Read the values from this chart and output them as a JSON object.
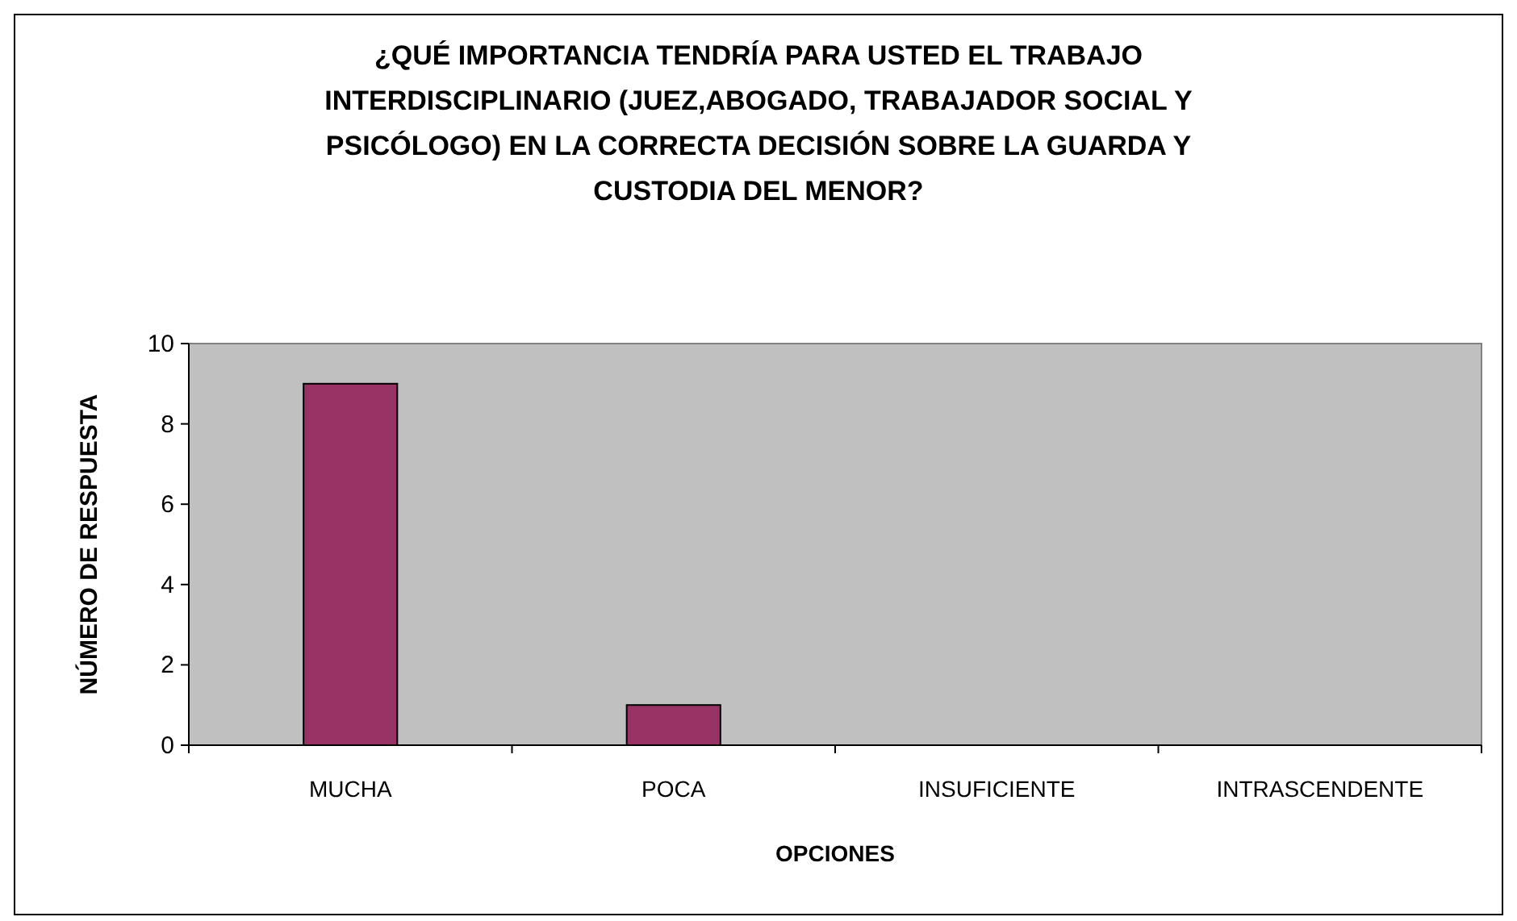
{
  "chart_data": {
    "type": "bar",
    "title": "¿QUÉ IMPORTANCIA TENDRÍA PARA USTED EL TRABAJO\nINTERDISCIPLINARIO (JUEZ,ABOGADO, TRABAJADOR SOCIAL Y\nPSICÓLOGO) EN LA CORRECTA DECISIÓN SOBRE LA GUARDA Y\nCUSTODIA DEL MENOR?",
    "xlabel": "OPCIONES",
    "ylabel": "NÚMERO DE RESPUESTA",
    "categories": [
      "MUCHA",
      "POCA",
      "INSUFICIENTE",
      "INTRASCENDENTE"
    ],
    "values": [
      9,
      1,
      0,
      0
    ],
    "color": "#993366",
    "ylim": [
      0,
      10
    ],
    "yticks": [
      0,
      2,
      4,
      6,
      8,
      10
    ]
  }
}
